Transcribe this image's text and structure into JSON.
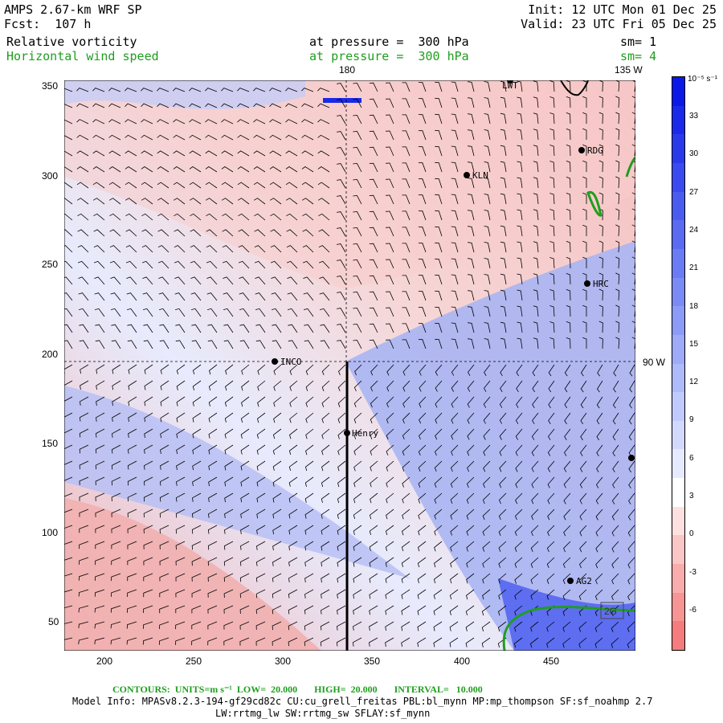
{
  "header": {
    "model": "AMPS 2.67-km WRF SP",
    "forecast_label": "Fcst:",
    "forecast_value": "107 h",
    "init": "Init: 12 UTC Mon 01 Dec 25",
    "valid": "Valid: 23 UTC Fri 05 Dec 25",
    "field1": "Relative vorticity",
    "field1_level": "at pressure =  300 hPa",
    "field1_sm": "sm= 1",
    "field2": "Horizontal wind speed",
    "field2_level": "at pressure =  300 hPa",
    "field2_sm": "sm= 4"
  },
  "map": {
    "lon_labels": [
      "180",
      "135 W",
      "90 W"
    ],
    "stations": [
      "LWT",
      "RDG",
      "KLN",
      "HRC",
      "INCO",
      "Henry",
      "AG2"
    ],
    "xticks": [
      "200",
      "250",
      "300",
      "350",
      "400",
      "450"
    ],
    "yticks": [
      "350",
      "300",
      "250",
      "200",
      "150",
      "100",
      "50"
    ],
    "box_label": "2G"
  },
  "colorbar": {
    "unit": "10⁻⁵ s⁻¹",
    "ticks": [
      "33",
      "30",
      "27",
      "24",
      "21",
      "18",
      "15",
      "12",
      "9",
      "6",
      "3",
      "0",
      "-3",
      "-6"
    ],
    "colors": [
      "#0b19e6",
      "#1a2ae8",
      "#2a3aeb",
      "#3a4aee",
      "#4a5bf0",
      "#5a6bf2",
      "#6b7bf4",
      "#7b8bf6",
      "#8c9bf8",
      "#9dabf9",
      "#aebbfa",
      "#c0cafc",
      "#d2d9fd",
      "#e6eafe",
      "#ffffff",
      "#fde0e0",
      "#fbc6c6",
      "#f9acac",
      "#f79494",
      "#f57c7c"
    ]
  },
  "footer": {
    "contours": "CONTOURS:  UNITS=m s⁻¹  LOW=  20.000       HIGH=  20.000       INTERVAL=   10.000",
    "model_info": "Model Info: MPASv8.2.3-194-gf29cd82c CU:cu_grell_freitas PBL:bl_mynn MP:mp_thompson SF:sf_noahmp 2.7",
    "model_info2": "LW:rrtmg_lw SW:rrtmg_sw SFLAY:sf_mynn"
  }
}
